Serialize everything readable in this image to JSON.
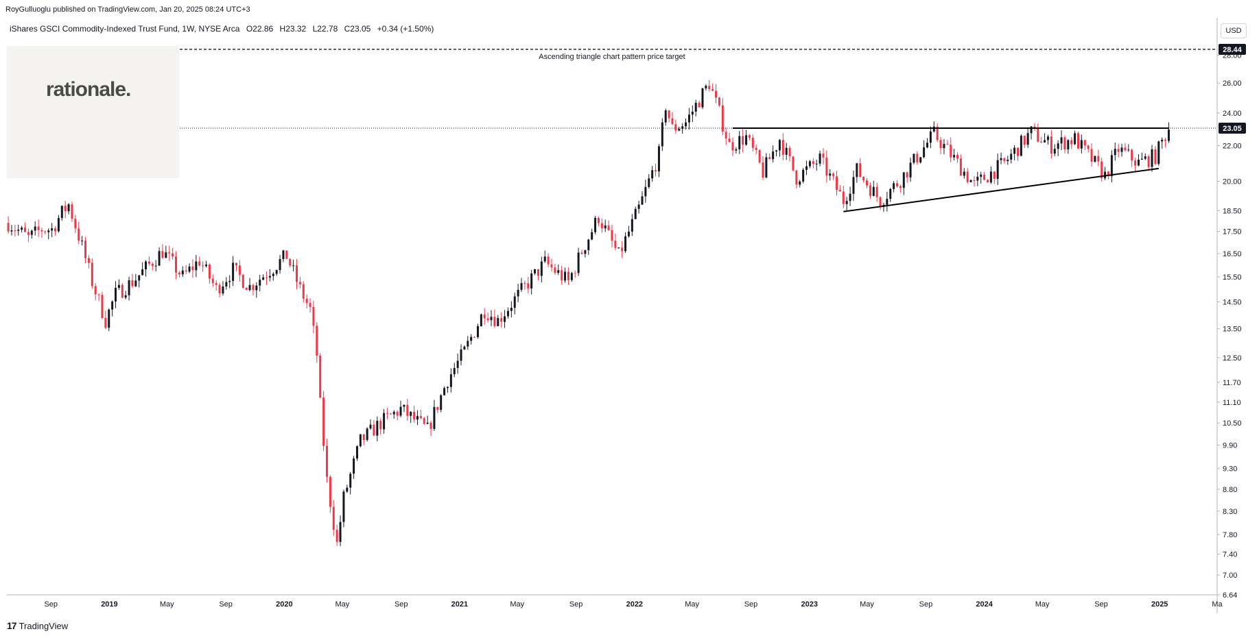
{
  "header": {
    "published": "RoyGulluoglu published on TradingView.com, Jan 20, 2025 08:24 UTC+3"
  },
  "legend": {
    "title": "iShares GSCI Commodity-Indexed Trust Fund, 1W, NYSE Arca",
    "open": "O22.86",
    "high": "H23.32",
    "low": "L22.78",
    "close": "C23.05",
    "change": "+0.34 (+1.50%)"
  },
  "logo": {
    "text": "rationale."
  },
  "currency_button": "USD",
  "footer": {
    "brand": "TradingView",
    "logo_glyph": "17"
  },
  "chart_data": {
    "type": "candlestick",
    "xlim": [
      "2018-06-01",
      "2025-05-01"
    ],
    "ylim": [
      6.64,
      28.44
    ],
    "y_scale": "log",
    "y_ticks": [
      28.0,
      26.0,
      24.0,
      22.0,
      20.0,
      18.5,
      17.5,
      16.5,
      15.5,
      14.5,
      13.5,
      12.5,
      11.7,
      11.1,
      10.5,
      9.9,
      9.3,
      8.8,
      8.3,
      7.8,
      7.4,
      7.0,
      6.64
    ],
    "y_tick_labels": [
      "28.00",
      "26.00",
      "24.00",
      "22.00",
      "20.00",
      "18.50",
      "17.50",
      "16.50",
      "15.50",
      "14.50",
      "13.50",
      "12.50",
      "11.70",
      "11.10",
      "10.50",
      "9.90",
      "9.30",
      "8.80",
      "8.30",
      "7.80",
      "7.40",
      "7.00",
      "6.64"
    ],
    "x_ticks": [
      {
        "date": "2018-09-01",
        "label": "Sep",
        "bold": false
      },
      {
        "date": "2019-01-01",
        "label": "2019",
        "bold": true
      },
      {
        "date": "2019-05-01",
        "label": "May",
        "bold": false
      },
      {
        "date": "2019-09-01",
        "label": "Sep",
        "bold": false
      },
      {
        "date": "2020-01-01",
        "label": "2020",
        "bold": true
      },
      {
        "date": "2020-05-01",
        "label": "May",
        "bold": false
      },
      {
        "date": "2020-09-01",
        "label": "Sep",
        "bold": false
      },
      {
        "date": "2021-01-01",
        "label": "2021",
        "bold": true
      },
      {
        "date": "2021-05-01",
        "label": "May",
        "bold": false
      },
      {
        "date": "2021-09-01",
        "label": "Sep",
        "bold": false
      },
      {
        "date": "2022-01-01",
        "label": "2022",
        "bold": true
      },
      {
        "date": "2022-05-01",
        "label": "May",
        "bold": false
      },
      {
        "date": "2022-09-01",
        "label": "Sep",
        "bold": false
      },
      {
        "date": "2023-01-01",
        "label": "2023",
        "bold": true
      },
      {
        "date": "2023-05-01",
        "label": "May",
        "bold": false
      },
      {
        "date": "2023-09-01",
        "label": "Sep",
        "bold": false
      },
      {
        "date": "2024-01-01",
        "label": "2024",
        "bold": true
      },
      {
        "date": "2024-05-01",
        "label": "May",
        "bold": false
      },
      {
        "date": "2024-09-01",
        "label": "Sep",
        "bold": false
      },
      {
        "date": "2025-01-01",
        "label": "2025",
        "bold": true
      },
      {
        "date": "2025-05-01",
        "label": "Ma",
        "bold": false
      }
    ],
    "last_price": 23.05,
    "last_price_label": "23.05",
    "target_price": 28.44,
    "target_price_label": "28.44",
    "annotation": "Ascending triangle chart pattern price target",
    "trendlines": [
      {
        "name": "resistance",
        "start": {
          "date": "2022-07-25",
          "price": 23.05
        },
        "end": {
          "date": "2025-01-20",
          "price": 23.05
        }
      },
      {
        "name": "support",
        "start": {
          "date": "2023-03-13",
          "price": 18.45
        },
        "end": {
          "date": "2024-12-30",
          "price": 20.7
        }
      }
    ],
    "colors": {
      "up": "#131722",
      "down": "#f23645",
      "lines": "#000000"
    },
    "anchors": [
      {
        "date": "2018-06-04",
        "price": 17.9
      },
      {
        "date": "2018-07-16",
        "price": 17.2
      },
      {
        "date": "2018-08-13",
        "price": 17.6
      },
      {
        "date": "2018-09-03",
        "price": 17.6
      },
      {
        "date": "2018-09-24",
        "price": 18.4
      },
      {
        "date": "2018-10-08",
        "price": 18.8
      },
      {
        "date": "2018-11-05",
        "price": 16.8
      },
      {
        "date": "2018-11-26",
        "price": 15.3
      },
      {
        "date": "2018-12-24",
        "price": 13.8
      },
      {
        "date": "2019-01-14",
        "price": 14.8
      },
      {
        "date": "2019-02-18",
        "price": 15.3
      },
      {
        "date": "2019-04-22",
        "price": 16.6
      },
      {
        "date": "2019-06-03",
        "price": 15.5
      },
      {
        "date": "2019-07-08",
        "price": 16.2
      },
      {
        "date": "2019-08-12",
        "price": 15.0
      },
      {
        "date": "2019-09-16",
        "price": 15.8
      },
      {
        "date": "2019-10-21",
        "price": 15.1
      },
      {
        "date": "2019-12-09",
        "price": 15.9
      },
      {
        "date": "2020-01-06",
        "price": 16.4
      },
      {
        "date": "2020-02-03",
        "price": 15.0
      },
      {
        "date": "2020-02-24",
        "price": 14.2
      },
      {
        "date": "2020-03-09",
        "price": 12.6
      },
      {
        "date": "2020-03-16",
        "price": 11.0
      },
      {
        "date": "2020-03-30",
        "price": 9.0
      },
      {
        "date": "2020-04-20",
        "price": 7.6
      },
      {
        "date": "2020-05-04",
        "price": 8.6
      },
      {
        "date": "2020-06-08",
        "price": 10.0
      },
      {
        "date": "2020-07-20",
        "price": 10.5
      },
      {
        "date": "2020-08-31",
        "price": 10.9
      },
      {
        "date": "2020-10-26",
        "price": 10.3
      },
      {
        "date": "2020-12-07",
        "price": 11.8
      },
      {
        "date": "2021-01-11",
        "price": 12.7
      },
      {
        "date": "2021-02-22",
        "price": 14.2
      },
      {
        "date": "2021-03-22",
        "price": 13.8
      },
      {
        "date": "2021-05-17",
        "price": 15.1
      },
      {
        "date": "2021-06-28",
        "price": 16.1
      },
      {
        "date": "2021-08-16",
        "price": 15.3
      },
      {
        "date": "2021-09-13",
        "price": 16.6
      },
      {
        "date": "2021-10-18",
        "price": 18.2
      },
      {
        "date": "2021-11-29",
        "price": 16.4
      },
      {
        "date": "2022-01-10",
        "price": 18.6
      },
      {
        "date": "2022-02-21",
        "price": 21.5
      },
      {
        "date": "2022-03-07",
        "price": 24.5
      },
      {
        "date": "2022-03-21",
        "price": 23.0
      },
      {
        "date": "2022-04-18",
        "price": 23.4
      },
      {
        "date": "2022-05-09",
        "price": 24.5
      },
      {
        "date": "2022-06-06",
        "price": 26.0
      },
      {
        "date": "2022-06-27",
        "price": 24.0
      },
      {
        "date": "2022-07-18",
        "price": 22.0
      },
      {
        "date": "2022-08-22",
        "price": 22.5
      },
      {
        "date": "2022-09-26",
        "price": 20.5
      },
      {
        "date": "2022-10-31",
        "price": 22.4
      },
      {
        "date": "2022-12-05",
        "price": 20.2
      },
      {
        "date": "2023-01-23",
        "price": 21.2
      },
      {
        "date": "2023-03-13",
        "price": 19.0
      },
      {
        "date": "2023-04-10",
        "price": 20.6
      },
      {
        "date": "2023-05-29",
        "price": 19.0
      },
      {
        "date": "2023-07-10",
        "price": 20.1
      },
      {
        "date": "2023-09-18",
        "price": 22.7
      },
      {
        "date": "2023-11-06",
        "price": 21.0
      },
      {
        "date": "2023-12-11",
        "price": 19.8
      },
      {
        "date": "2024-02-12",
        "price": 21.0
      },
      {
        "date": "2024-04-08",
        "price": 22.8
      },
      {
        "date": "2024-05-20",
        "price": 22.0
      },
      {
        "date": "2024-07-08",
        "price": 22.4
      },
      {
        "date": "2024-09-09",
        "price": 20.3
      },
      {
        "date": "2024-10-07",
        "price": 21.8
      },
      {
        "date": "2024-11-18",
        "price": 21.0
      },
      {
        "date": "2024-12-23",
        "price": 21.4
      },
      {
        "date": "2025-01-20",
        "price": 23.05
      }
    ]
  }
}
